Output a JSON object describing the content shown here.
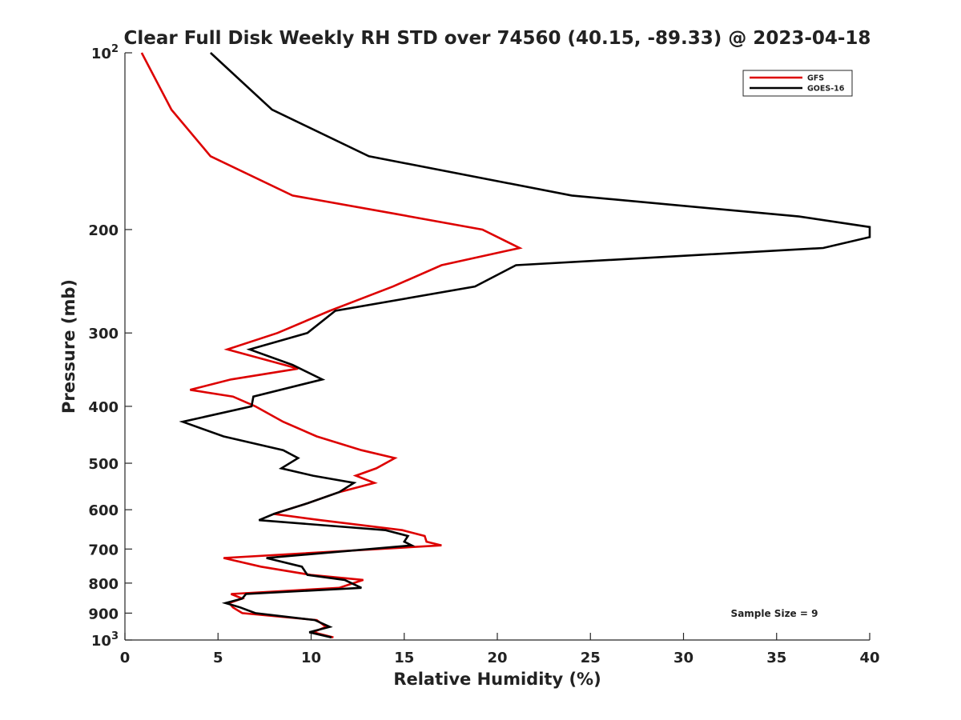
{
  "chart_data": {
    "type": "line",
    "title": "Clear Full Disk Weekly RH STD over 74560 (40.15, -89.33) @ 2023-04-18",
    "xlabel": "Relative Humidity (%)",
    "ylabel": "Pressure (mb)",
    "xlim": [
      0,
      40
    ],
    "ylim": [
      100,
      1000
    ],
    "y_scale": "log",
    "y_reversed": true,
    "x_ticks": [
      0,
      5,
      10,
      15,
      20,
      25,
      30,
      35,
      40
    ],
    "x_tick_labels": [
      "0",
      "5",
      "10",
      "15",
      "20",
      "25",
      "30",
      "35",
      "40"
    ],
    "y_ticks": [
      200,
      300,
      400,
      500,
      600,
      700,
      800,
      900
    ],
    "y_tick_labels": [
      "200",
      "300",
      "400",
      "500",
      "600",
      "700",
      "800",
      "900"
    ],
    "y_end_labels": [
      {
        "value": 100,
        "base": "10",
        "exp": "2"
      },
      {
        "value": 1000,
        "base": "10",
        "exp": "3"
      }
    ],
    "grid": false,
    "legend_position": "top-right",
    "annotation": "Sample Size = 9",
    "series": [
      {
        "name": "GFS",
        "color": "#dd0000",
        "points": [
          [
            0.9,
            100
          ],
          [
            2.5,
            125
          ],
          [
            4.6,
            150
          ],
          [
            9.0,
            175
          ],
          [
            14.5,
            188
          ],
          [
            19.2,
            200
          ],
          [
            21.2,
            215
          ],
          [
            17.0,
            230
          ],
          [
            14.4,
            250
          ],
          [
            11.0,
            275
          ],
          [
            8.2,
            300
          ],
          [
            5.5,
            320
          ],
          [
            9.3,
            345
          ],
          [
            5.7,
            360
          ],
          [
            3.5,
            375
          ],
          [
            5.8,
            385
          ],
          [
            7.0,
            400
          ],
          [
            8.5,
            425
          ],
          [
            10.3,
            450
          ],
          [
            12.7,
            475
          ],
          [
            14.5,
            490
          ],
          [
            13.5,
            510
          ],
          [
            12.4,
            525
          ],
          [
            13.4,
            540
          ],
          [
            11.5,
            560
          ],
          [
            9.8,
            585
          ],
          [
            8.0,
            610
          ],
          [
            10.5,
            625
          ],
          [
            14.9,
            650
          ],
          [
            16.1,
            665
          ],
          [
            16.2,
            680
          ],
          [
            17.0,
            690
          ],
          [
            5.3,
            725
          ],
          [
            7.3,
            750
          ],
          [
            10.0,
            775
          ],
          [
            12.8,
            790
          ],
          [
            11.5,
            815
          ],
          [
            5.7,
            835
          ],
          [
            6.3,
            850
          ],
          [
            5.6,
            865
          ],
          [
            5.8,
            880
          ],
          [
            6.3,
            900
          ],
          [
            10.3,
            925
          ],
          [
            10.8,
            950
          ],
          [
            10.1,
            970
          ],
          [
            11.2,
            990
          ]
        ]
      },
      {
        "name": "GOES-16",
        "color": "#000000",
        "points": [
          [
            4.6,
            100
          ],
          [
            7.9,
            125
          ],
          [
            13.1,
            150
          ],
          [
            24.0,
            175
          ],
          [
            36.2,
            190
          ],
          [
            40.0,
            198
          ],
          [
            40.0,
            206
          ],
          [
            37.5,
            215
          ],
          [
            21.0,
            230
          ],
          [
            18.8,
            250
          ],
          [
            11.3,
            275
          ],
          [
            9.8,
            300
          ],
          [
            6.7,
            320
          ],
          [
            9.0,
            340
          ],
          [
            10.6,
            360
          ],
          [
            6.9,
            385
          ],
          [
            6.8,
            400
          ],
          [
            3.1,
            425
          ],
          [
            5.3,
            450
          ],
          [
            8.5,
            475
          ],
          [
            9.3,
            490
          ],
          [
            8.4,
            510
          ],
          [
            10.1,
            525
          ],
          [
            12.3,
            540
          ],
          [
            11.5,
            560
          ],
          [
            9.8,
            585
          ],
          [
            8.0,
            610
          ],
          [
            7.2,
            625
          ],
          [
            14.0,
            650
          ],
          [
            15.2,
            665
          ],
          [
            15.0,
            680
          ],
          [
            15.4,
            690
          ],
          [
            7.6,
            725
          ],
          [
            9.5,
            750
          ],
          [
            9.8,
            775
          ],
          [
            11.8,
            790
          ],
          [
            12.7,
            815
          ],
          [
            6.5,
            835
          ],
          [
            6.3,
            850
          ],
          [
            5.4,
            865
          ],
          [
            6.2,
            880
          ],
          [
            7.0,
            900
          ],
          [
            10.2,
            925
          ],
          [
            11.0,
            950
          ],
          [
            9.9,
            970
          ],
          [
            11.1,
            990
          ]
        ]
      }
    ]
  }
}
